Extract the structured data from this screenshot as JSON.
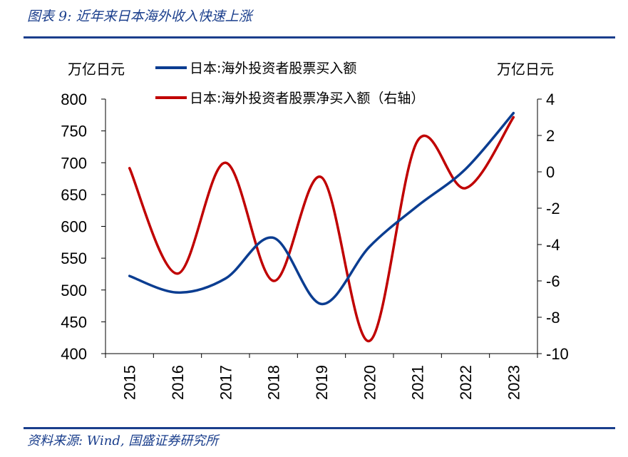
{
  "header": {
    "title": "图表 9:  近年来日本海外收入快速上涨"
  },
  "footer": {
    "source": "资料来源:  Wind,  国盛证券研究所"
  },
  "colors": {
    "blue": "#0b3d91",
    "red": "#c00000",
    "brand": "#1a3e8c"
  },
  "chart_data": {
    "type": "line",
    "title": "",
    "x": [
      "2015",
      "2016",
      "2017",
      "2018",
      "2019",
      "2020",
      "2021",
      "2022",
      "2023"
    ],
    "left_axis": {
      "unit": "万亿日元",
      "ylim": [
        400,
        800
      ],
      "ticks": [
        "800",
        "750",
        "700",
        "650",
        "600",
        "550",
        "500",
        "450",
        "400"
      ]
    },
    "right_axis": {
      "unit": "万亿日元",
      "ylim": [
        -10,
        4
      ],
      "ticks": [
        "4",
        "2",
        "0",
        "-2",
        "-4",
        "-6",
        "-8",
        "-10"
      ]
    },
    "series": [
      {
        "name": "日本:海外投资者股票买入额",
        "axis": "left",
        "color": "#0b3d91",
        "values": [
          522,
          496,
          518,
          582,
          478,
          568,
          632,
          690,
          778
        ]
      },
      {
        "name": "日本:海外投资者股票净买入额（右轴）",
        "axis": "right",
        "color": "#c00000",
        "values": [
          0.2,
          -5.6,
          0.5,
          -6.0,
          -0.3,
          -9.3,
          1.7,
          -0.9,
          3.0
        ]
      }
    ]
  }
}
